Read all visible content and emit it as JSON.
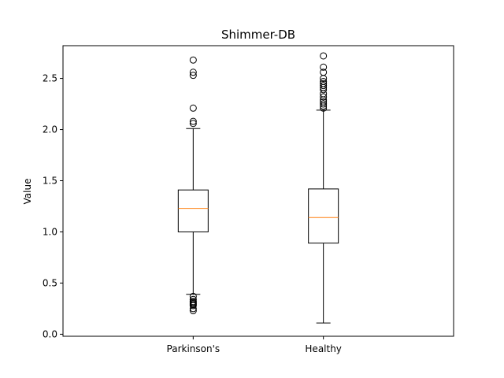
{
  "chart_data": {
    "type": "box",
    "title": "Shimmer-DB",
    "xlabel": "",
    "ylabel": "Value",
    "ylim": [
      -0.02,
      2.82
    ],
    "yticks": [
      "0.0",
      "0.5",
      "1.0",
      "1.5",
      "2.0",
      "2.5"
    ],
    "categories": [
      "Parkinson's",
      "Healthy"
    ],
    "boxes": [
      {
        "category": "Parkinson's",
        "whisker_low": 0.39,
        "q1": 1.0,
        "median": 1.23,
        "q3": 1.41,
        "whisker_high": 2.01,
        "outliers": [
          2.68,
          2.56,
          2.53,
          2.21,
          2.08,
          2.06,
          0.37,
          0.34,
          0.32,
          0.31,
          0.3,
          0.29,
          0.28,
          0.25,
          0.23
        ]
      },
      {
        "category": "Healthy",
        "whisker_low": 0.11,
        "q1": 0.89,
        "median": 1.14,
        "q3": 1.42,
        "whisker_high": 2.19,
        "outliers": [
          2.72,
          2.61,
          2.56,
          2.5,
          2.47,
          2.45,
          2.43,
          2.41,
          2.39,
          2.35,
          2.32,
          2.29,
          2.27,
          2.25,
          2.23,
          2.21
        ]
      }
    ],
    "colors": {
      "box": "#000000",
      "median": "#ff7f0e",
      "background": "#ffffff"
    },
    "grid": false,
    "legend": "none"
  }
}
